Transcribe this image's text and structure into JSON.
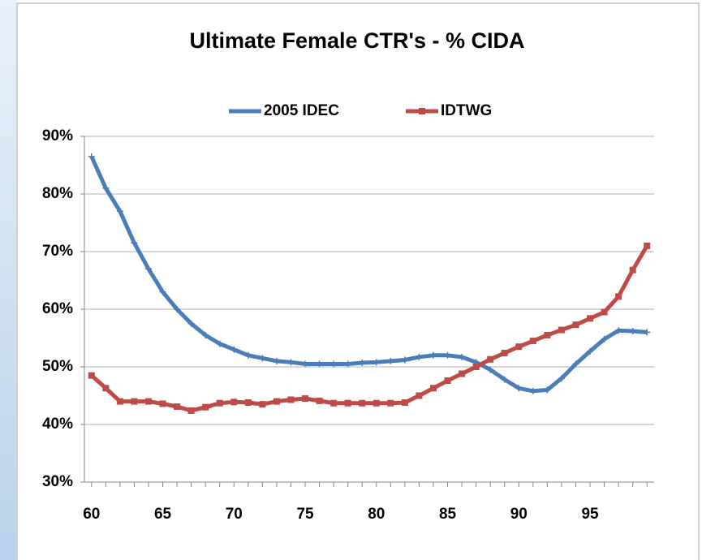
{
  "chart_data": {
    "type": "line",
    "title": "Ultimate Female CTR's - % CIDA",
    "x": [
      60,
      61,
      62,
      63,
      64,
      65,
      66,
      67,
      68,
      69,
      70,
      71,
      72,
      73,
      74,
      75,
      76,
      77,
      78,
      79,
      80,
      81,
      82,
      83,
      84,
      85,
      86,
      87,
      88,
      89,
      90,
      91,
      92,
      93,
      94,
      95,
      96,
      97,
      98,
      99
    ],
    "xlim": [
      59.5,
      99.5
    ],
    "xticks": [
      60,
      65,
      70,
      75,
      80,
      85,
      90,
      95
    ],
    "ylim": [
      30,
      90
    ],
    "yticks": [
      {
        "value": 30,
        "label": "30%"
      },
      {
        "value": 40,
        "label": "40%"
      },
      {
        "value": 50,
        "label": "50%"
      },
      {
        "value": 60,
        "label": "60%"
      },
      {
        "value": 70,
        "label": "70%"
      },
      {
        "value": 80,
        "label": "80%"
      },
      {
        "value": 90,
        "label": "90%"
      }
    ],
    "grid": true,
    "legend": "top",
    "series": [
      {
        "name": "2005 IDEC",
        "color": "#4a7ebb",
        "marker": "plus",
        "values": [
          86.5,
          81,
          77,
          71.5,
          67,
          63,
          60,
          57.5,
          55.5,
          54,
          53,
          52,
          51.5,
          51,
          50.8,
          50.5,
          50.5,
          50.5,
          50.5,
          50.7,
          50.8,
          51,
          51.2,
          51.7,
          52,
          52,
          51.7,
          50.8,
          49.5,
          47.8,
          46.3,
          45.8,
          46,
          48,
          50.5,
          52.7,
          54.8,
          56.3,
          56.2,
          56
        ]
      },
      {
        "name": "IDTWG",
        "color": "#be4b48",
        "marker": "square",
        "values": [
          48.5,
          46.3,
          44,
          44,
          44,
          43.6,
          43.1,
          42.4,
          43,
          43.7,
          43.9,
          43.8,
          43.5,
          44,
          44.3,
          44.5,
          44.1,
          43.7,
          43.7,
          43.7,
          43.7,
          43.7,
          43.8,
          45,
          46.3,
          47.6,
          48.8,
          50,
          51.3,
          52.4,
          53.5,
          54.5,
          55.5,
          56.4,
          57.3,
          58.4,
          59.5,
          62.2,
          66.8,
          71
        ]
      }
    ]
  }
}
